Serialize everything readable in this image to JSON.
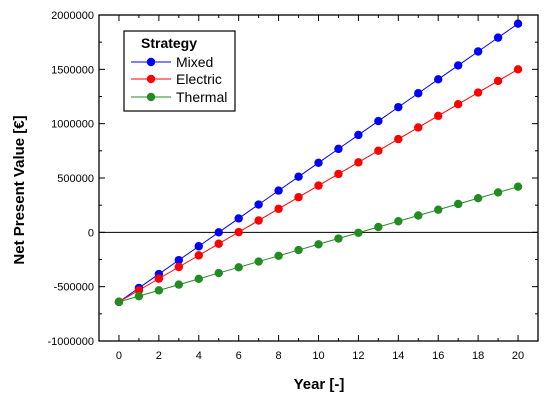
{
  "chart_data": {
    "type": "line",
    "xlabel": "Year [-]",
    "ylabel": "Net Present Value [€]",
    "x": [
      0,
      1,
      2,
      3,
      4,
      5,
      6,
      7,
      8,
      9,
      10,
      11,
      12,
      13,
      14,
      15,
      16,
      17,
      18,
      19,
      20
    ],
    "xlim": [
      -1,
      21
    ],
    "ylim": [
      -1000000,
      2000000
    ],
    "xticks": [
      0,
      2,
      4,
      6,
      8,
      10,
      12,
      14,
      16,
      18,
      20
    ],
    "yticks": [
      -1000000,
      -500000,
      0,
      500000,
      1000000,
      1500000,
      2000000
    ],
    "xtick_labels": [
      "0",
      "2",
      "4",
      "6",
      "8",
      "10",
      "12",
      "14",
      "16",
      "18",
      "20"
    ],
    "ytick_labels": [
      "-1000000",
      "-500000",
      "0",
      "500000",
      "1000000",
      "1500000",
      "2000000"
    ],
    "grid": false,
    "zero_line": true,
    "legend": {
      "title": "Strategy",
      "position": "top-left"
    },
    "series": [
      {
        "name": "Mixed",
        "color": "#0000ff",
        "values": [
          -640000,
          -512000,
          -384000,
          -256000,
          -128000,
          0,
          128000,
          256000,
          384000,
          512000,
          640000,
          768000,
          896000,
          1024000,
          1152000,
          1280000,
          1408000,
          1536000,
          1664000,
          1792000,
          1920000
        ]
      },
      {
        "name": "Electric",
        "color": "#ff0000",
        "values": [
          -640000,
          -533000,
          -426000,
          -319000,
          -212000,
          -105000,
          2000,
          109000,
          216000,
          323000,
          430000,
          537000,
          644000,
          751000,
          858000,
          965000,
          1072000,
          1179000,
          1286000,
          1393000,
          1500000
        ]
      },
      {
        "name": "Thermal",
        "color": "#228b22",
        "values": [
          -640000,
          -587000,
          -534000,
          -481000,
          -428000,
          -375000,
          -322000,
          -269000,
          -216000,
          -163000,
          -110000,
          -57000,
          -4000,
          49000,
          102000,
          155000,
          208000,
          261000,
          314000,
          367000,
          420000
        ]
      }
    ]
  }
}
